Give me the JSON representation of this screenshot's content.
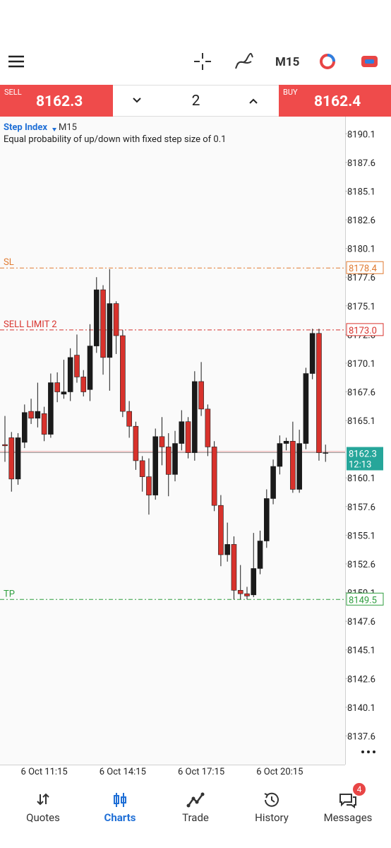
{
  "toolbar": {
    "timeframe": "M15"
  },
  "trade_panel": {
    "sell_label": "SELL",
    "sell_price": 8162.3,
    "volume": 2,
    "buy_label": "BUY",
    "buy_price": 8162.4
  },
  "chart_data": {
    "type": "candlestick",
    "title": "Step Index",
    "timeframe": "M15",
    "subtitle": "Equal probability of up/down with fixed step size of 0.1",
    "categories": [
      null,
      null,
      null,
      null,
      null,
      null,
      "6 Oct 11:15",
      null,
      null,
      null,
      null,
      null,
      null,
      null,
      null,
      null,
      null,
      null,
      "6 Oct 14:15",
      null,
      null,
      null,
      null,
      null,
      null,
      null,
      null,
      null,
      null,
      null,
      "6 Oct 17:15",
      null,
      null,
      null,
      null,
      null,
      null,
      null,
      null,
      null,
      null,
      null,
      "6 Oct 20:15",
      null,
      null,
      null,
      null,
      null,
      null,
      null
    ],
    "open": [
      8163.0,
      8163.6,
      8160.0,
      8163.2,
      8165.9,
      8165.3,
      8165.7,
      8163.9,
      8168.4,
      8167.4,
      8167.6,
      8170.8,
      8168.9,
      8167.8,
      8171.6,
      8176.5,
      8170.6,
      8175.3,
      8172.5,
      8165.9,
      8164.6,
      8161.6,
      8160.2,
      8158.6,
      8163.7,
      8162.8,
      8160.4,
      8163.1,
      8165.0,
      8162.3,
      8168.5,
      8166.1,
      8162.8,
      8157.7,
      8153.4,
      8154.3,
      8150.3,
      8150.0,
      8149.9,
      8152.2,
      8154.6,
      8158.3,
      8161.1,
      8163.1,
      8163.3,
      8159.1,
      8163.1,
      8169.2,
      8172.7,
      8162.3
    ],
    "high": [
      8165.5,
      8164.1,
      8164.0,
      8166.5,
      8167.0,
      8168.4,
      8166.3,
      8169.2,
      8169.3,
      8170.4,
      8171.4,
      8172.6,
      8169.5,
      8173.5,
      8177.6,
      8176.9,
      8178.3,
      8175.5,
      8173.0,
      8166.8,
      8165.0,
      8162.0,
      8161.8,
      8164.4,
      8165.4,
      8164.0,
      8164.2,
      8166.0,
      8165.4,
      8169.4,
      8170.2,
      8166.5,
      8163.3,
      8158.6,
      8156.2,
      8155.0,
      8152.5,
      8150.6,
      8155.3,
      8155.5,
      8159.1,
      8161.7,
      8163.8,
      8163.6,
      8165.0,
      8164.3,
      8169.7,
      8173.1,
      8173.1,
      8163.0
    ],
    "low": [
      8161.5,
      8158.9,
      8159.5,
      8162.7,
      8164.8,
      8164.5,
      8163.3,
      8163.6,
      8166.7,
      8167.0,
      8166.8,
      8168.4,
      8167.2,
      8166.8,
      8171.0,
      8169.1,
      8167.7,
      8170.9,
      8165.4,
      8163.6,
      8160.8,
      8158.9,
      8156.9,
      8158.2,
      8161.2,
      8158.5,
      8159.8,
      8162.5,
      8161.8,
      8161.6,
      8165.5,
      8162.0,
      8157.2,
      8152.4,
      8152.8,
      8149.5,
      8149.5,
      8149.5,
      8149.7,
      8151.7,
      8154.0,
      8157.8,
      8160.4,
      8162.5,
      8158.8,
      8158.8,
      8162.6,
      8168.7,
      8161.6,
      8161.5
    ],
    "close": [
      8162.9,
      8160.0,
      8163.6,
      8165.8,
      8165.3,
      8165.9,
      8163.9,
      8168.4,
      8167.6,
      8167.6,
      8170.6,
      8168.9,
      8167.6,
      8171.6,
      8176.5,
      8170.6,
      8175.3,
      8172.5,
      8165.9,
      8164.6,
      8161.6,
      8160.2,
      8158.6,
      8163.7,
      8162.8,
      8160.4,
      8163.1,
      8165.0,
      8162.3,
      8168.5,
      8166.1,
      8162.8,
      8157.7,
      8153.4,
      8154.3,
      8150.3,
      8150.0,
      8149.8,
      8152.2,
      8154.6,
      8158.3,
      8161.1,
      8163.1,
      8163.3,
      8159.1,
      8163.1,
      8169.2,
      8172.7,
      8162.3,
      8162.3
    ],
    "up_color": "#1a1a1a",
    "down_color": "#d8322c",
    "ylim": [
      8135.1,
      8191.6
    ],
    "yticks": [
      8190.1,
      8187.6,
      8185.1,
      8182.6,
      8180.1,
      8177.6,
      8175.1,
      8172.6,
      8170.1,
      8167.6,
      8165.1,
      8160.1,
      8157.6,
      8155.1,
      8152.6,
      8150.1,
      8147.6,
      8145.1,
      8142.6,
      8140.1,
      8137.6
    ],
    "levels": [
      {
        "name": "SL",
        "value": 8178.4,
        "color": "#e07a30"
      },
      {
        "name": "SELL LIMIT 2",
        "value": 8173.0,
        "label": "8173.0",
        "color": "#d8322c"
      },
      {
        "name": "TP",
        "value": 8149.5,
        "color": "#2e9e3e"
      }
    ],
    "current_price": 8162.3,
    "countdown": "12:13",
    "current_color": "#26a69a"
  },
  "bottom_nav": {
    "items": [
      "Quotes",
      "Charts",
      "Trade",
      "History",
      "Messages"
    ],
    "active": 1,
    "badge": 4
  }
}
